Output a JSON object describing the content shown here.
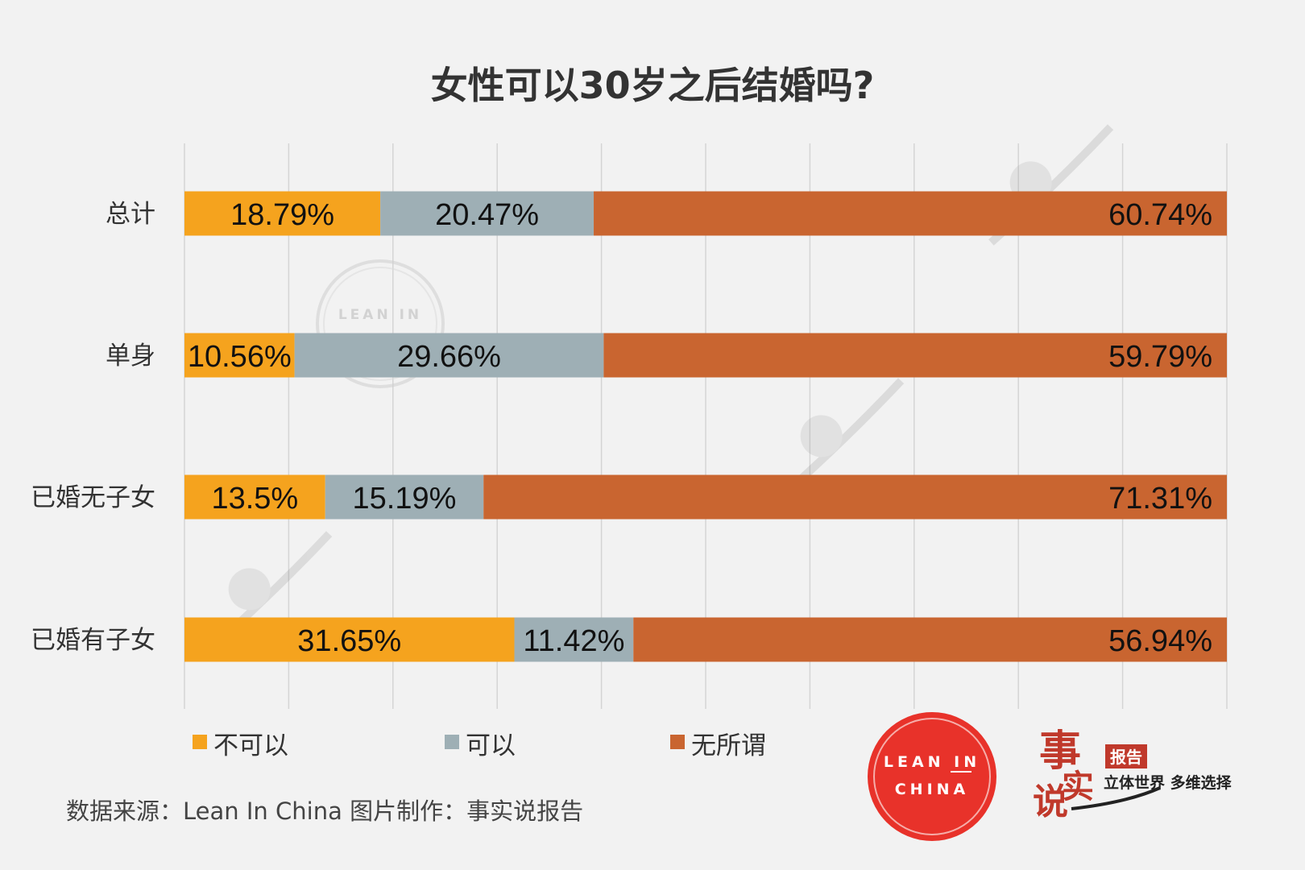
{
  "chart_data": {
    "type": "bar",
    "orientation": "horizontal",
    "stacked": true,
    "title": "女性可以30岁之后结婚吗?",
    "categories": [
      "总计",
      "单身",
      "已婚无子女",
      "已婚有子女"
    ],
    "series": [
      {
        "name": "不可以",
        "color": "#f5a31e",
        "values": [
          18.79,
          10.56,
          13.5,
          31.65
        ],
        "labels": [
          "18.79%",
          "10.56%",
          "13.5%",
          "31.65%"
        ]
      },
      {
        "name": "可以",
        "color": "#9eafb5",
        "values": [
          20.47,
          29.66,
          15.19,
          11.42
        ],
        "labels": [
          "20.47%",
          "29.66%",
          "15.19%",
          "11.42%"
        ]
      },
      {
        "name": "无所谓",
        "color": "#c96530",
        "values": [
          60.74,
          59.79,
          71.31,
          56.94
        ],
        "labels": [
          "60.74%",
          "59.79%",
          "71.31%",
          "56.94%"
        ]
      }
    ],
    "xlim": [
      0,
      100
    ],
    "grid": true,
    "legend_position": "bottom-left"
  },
  "source": "数据来源：Lean In China  图片制作：事实说报告",
  "logos": {
    "lean_in_top": "LEAN IN",
    "lean_in_bottom": "CHINA",
    "lean_in_color": "#e8322a",
    "brand_chars": [
      "事",
      "实",
      "说"
    ],
    "brand_tag": "报告",
    "brand_sub": "立体世界 多维选择"
  }
}
